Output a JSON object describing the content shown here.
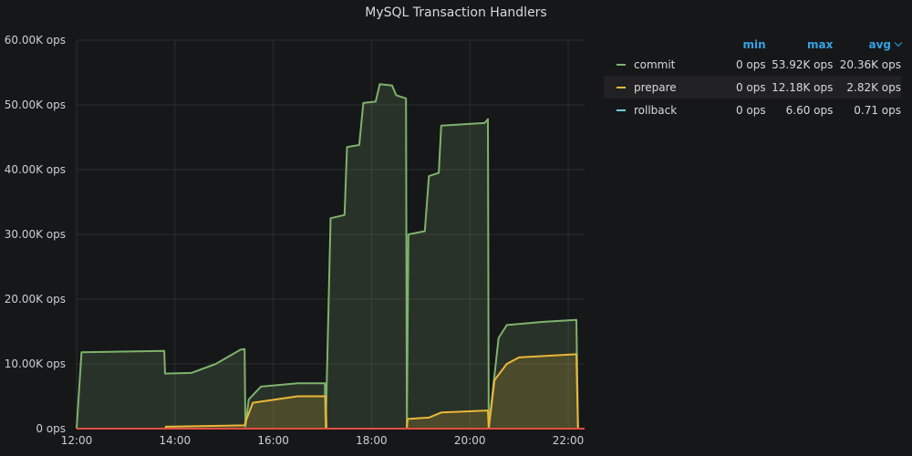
{
  "panel": {
    "title": "MySQL Transaction Handlers"
  },
  "legend": {
    "headers": {
      "min": "min",
      "max": "max",
      "avg": "avg"
    },
    "sort_icon": "chevron-down-icon",
    "rows": [
      {
        "name": "commit",
        "color": "#7eb26d",
        "min": "0 ops",
        "max": "53.92K ops",
        "avg": "20.36K ops"
      },
      {
        "name": "prepare",
        "color": "#eab839",
        "min": "0 ops",
        "max": "12.18K ops",
        "avg": "2.82K ops"
      },
      {
        "name": "rollback",
        "color": "#6ed0e0",
        "min": "0 ops",
        "max": "6.60 ops",
        "avg": "0.71 ops"
      }
    ]
  },
  "chart_data": {
    "type": "area",
    "title": "MySQL Transaction Handlers",
    "xlabel": "",
    "ylabel": "",
    "x_ticks": [
      "12:00",
      "14:00",
      "16:00",
      "18:00",
      "20:00",
      "22:00"
    ],
    "y_ticks": [
      "0 ops",
      "10.00K ops",
      "20.00K ops",
      "30.00K ops",
      "40.00K ops",
      "50.00K ops",
      "60.00K ops"
    ],
    "ylim": [
      0,
      60000
    ],
    "xlim": [
      "12:00",
      "22:20"
    ],
    "grid": true,
    "series": [
      {
        "name": "commit",
        "color": "#7eb26d",
        "points": [
          [
            "12:00",
            0
          ],
          [
            "12:06",
            11800
          ],
          [
            "13:47",
            12000
          ],
          [
            "13:48",
            8500
          ],
          [
            "14:20",
            8600
          ],
          [
            "14:50",
            10000
          ],
          [
            "15:20",
            12200
          ],
          [
            "15:25",
            12300
          ],
          [
            "15:26",
            300
          ],
          [
            "15:30",
            4500
          ],
          [
            "15:45",
            6500
          ],
          [
            "16:30",
            7000
          ],
          [
            "17:00",
            7000
          ],
          [
            "17:03",
            7000
          ],
          [
            "17:04",
            0
          ],
          [
            "17:10",
            32500
          ],
          [
            "17:27",
            33000
          ],
          [
            "17:30",
            43500
          ],
          [
            "17:45",
            43800
          ],
          [
            "17:50",
            50300
          ],
          [
            "18:05",
            50500
          ],
          [
            "18:10",
            53200
          ],
          [
            "18:25",
            53000
          ],
          [
            "18:30",
            51500
          ],
          [
            "18:42",
            51000
          ],
          [
            "18:43",
            100
          ],
          [
            "18:45",
            30000
          ],
          [
            "19:05",
            30500
          ],
          [
            "19:10",
            39000
          ],
          [
            "19:22",
            39500
          ],
          [
            "19:25",
            46800
          ],
          [
            "20:18",
            47200
          ],
          [
            "20:22",
            47800
          ],
          [
            "20:23",
            200
          ],
          [
            "20:35",
            14000
          ],
          [
            "20:45",
            16000
          ],
          [
            "21:30",
            16500
          ],
          [
            "22:10",
            16800
          ],
          [
            "22:12",
            0
          ]
        ]
      },
      {
        "name": "prepare",
        "color": "#eab839",
        "points": [
          [
            "12:00",
            0
          ],
          [
            "13:48",
            0
          ],
          [
            "13:49",
            300
          ],
          [
            "15:25",
            500
          ],
          [
            "15:26",
            1000
          ],
          [
            "15:35",
            4000
          ],
          [
            "16:30",
            5000
          ],
          [
            "17:04",
            5000
          ],
          [
            "17:05",
            0
          ],
          [
            "18:43",
            0
          ],
          [
            "18:44",
            1500
          ],
          [
            "19:10",
            1700
          ],
          [
            "19:25",
            2500
          ],
          [
            "20:22",
            2800
          ],
          [
            "20:23",
            0
          ],
          [
            "20:30",
            7500
          ],
          [
            "20:45",
            10000
          ],
          [
            "21:00",
            11000
          ],
          [
            "22:10",
            11500
          ],
          [
            "22:12",
            0
          ]
        ]
      },
      {
        "name": "rollback",
        "color": "#6ed0e0",
        "points": [
          [
            "12:00",
            0
          ],
          [
            "22:12",
            0
          ]
        ]
      }
    ],
    "threshold_line": {
      "value": 0,
      "color": "#e24d42"
    }
  }
}
